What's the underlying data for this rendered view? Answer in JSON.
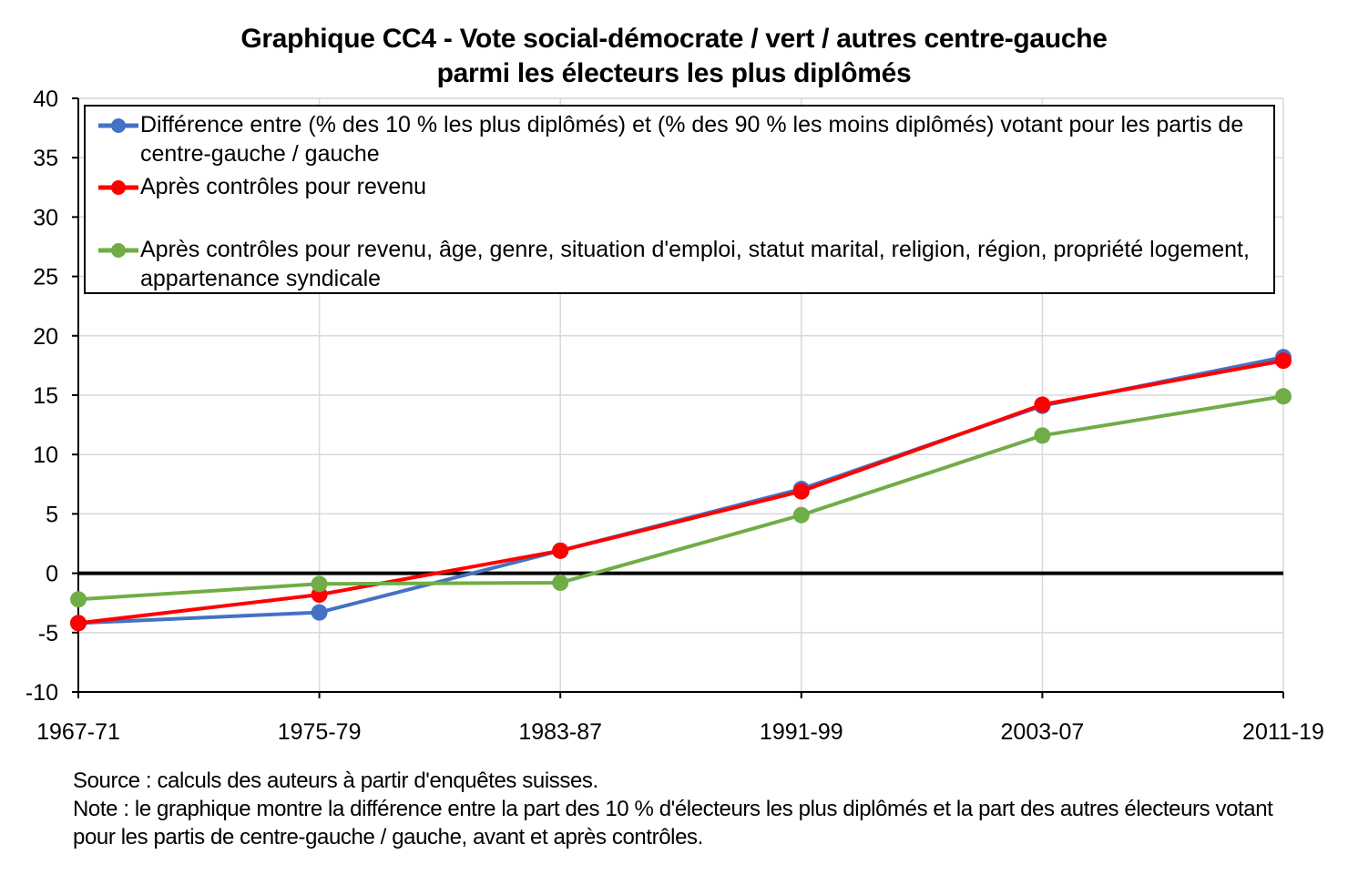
{
  "title": {
    "line1": "Graphique CC4 - Vote social-démocrate / vert / autres centre-gauche",
    "line2": "parmi les électeurs les plus diplômés"
  },
  "chart_data": {
    "type": "line",
    "categories": [
      "1967-71",
      "1975-79",
      "1983-87",
      "1991-99",
      "2003-07",
      "2011-19"
    ],
    "ylim": [
      -10,
      40
    ],
    "yticks": [
      -10,
      -5,
      0,
      5,
      10,
      15,
      20,
      25,
      30,
      35,
      40
    ],
    "grid": "horizontal",
    "zero_line": true,
    "legend_position": "top, inside plot",
    "series": [
      {
        "name": "Différence entre (% des 10 % les plus diplômés) et (% des 90 % les moins diplômés) votant pour les partis de centre-gauche / gauche",
        "color": "#4472C4",
        "marker": "circle",
        "values": [
          -4.2,
          -3.3,
          1.9,
          7.1,
          14.1,
          18.2
        ]
      },
      {
        "name": "Après contrôles pour revenu",
        "color": "#FF0000",
        "marker": "circle",
        "values": [
          -4.2,
          -1.8,
          1.9,
          6.9,
          14.2,
          17.9
        ]
      },
      {
        "name": "Après contrôles pour revenu, âge, genre, situation d'emploi, statut marital, religion, région, propriété logement, appartenance syndicale",
        "color": "#70AD47",
        "marker": "circle",
        "values": [
          -2.2,
          -0.9,
          -0.8,
          4.9,
          11.6,
          14.9
        ]
      }
    ]
  },
  "notes": {
    "source": "Source : calculs des auteurs à partir d'enquêtes suisses.",
    "note": "Note : le graphique montre la différence entre la part des 10 % d'électeurs les plus diplômés et la part des autres électeurs votant pour les partis de centre-gauche / gauche, avant et après contrôles."
  }
}
